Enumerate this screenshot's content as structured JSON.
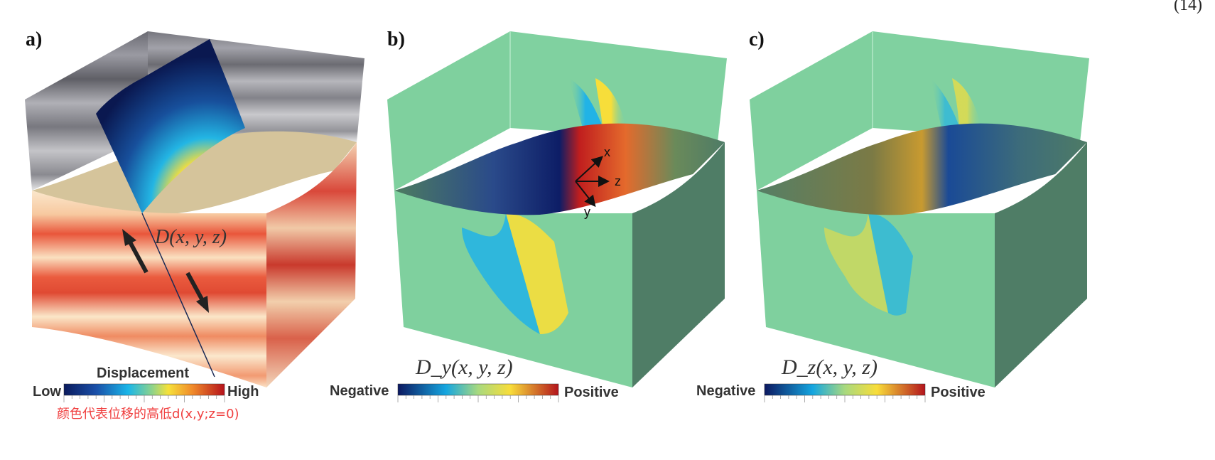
{
  "equation_number": "(14)",
  "panels": {
    "a": {
      "label": "a)",
      "field_label": "D(x, y, z)"
    },
    "b": {
      "label": "b)",
      "field_label": "D_y(x, y, z)",
      "axes": {
        "x": "x",
        "y": "y",
        "z": "z"
      }
    },
    "c": {
      "label": "c)",
      "field_label": "D_z(x, y, z)"
    }
  },
  "colorbars": {
    "a": {
      "title": "Displacement",
      "low": "Low",
      "high": "High",
      "annotation": "颜色代表位移的高低d(x,y;z=0)"
    },
    "b": {
      "low": "Negative",
      "high": "Positive"
    },
    "c": {
      "low": "Negative",
      "high": "Positive"
    }
  },
  "colors": {
    "background_green": "#7fd09e",
    "dark_top_green": "#5d8e74",
    "front_dark_green": "#4f7d66",
    "layer_red": "#e8553a",
    "layer_cream": "#fbe3c4",
    "top_tan": "#d6c59d",
    "annotation_red": "#f04040"
  }
}
